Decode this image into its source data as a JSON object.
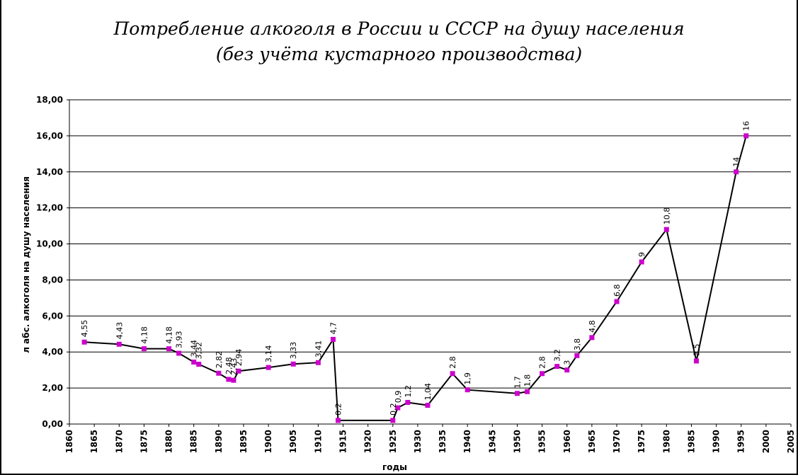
{
  "chart_data": {
    "type": "line",
    "title_line1": "Потребление алкоголя в России и СССР на душу населения",
    "title_line2": "(без учёта кустарного производства)",
    "xlabel": "годы",
    "ylabel": "л абс. алкоголя на душу населения",
    "xlim": [
      1860,
      2005
    ],
    "ylim": [
      0,
      18
    ],
    "x_ticks": [
      "1860",
      "1865",
      "1870",
      "1875",
      "1880",
      "1885",
      "1890",
      "1895",
      "1900",
      "1905",
      "1910",
      "1915",
      "1920",
      "1925",
      "1930",
      "1935",
      "1940",
      "1945",
      "1950",
      "1955",
      "1960",
      "1965",
      "1970",
      "1975",
      "1980",
      "1985",
      "1990",
      "1995",
      "2000",
      "2005"
    ],
    "y_ticks": [
      "0,00",
      "2,00",
      "4,00",
      "6,00",
      "8,00",
      "10,00",
      "12,00",
      "14,00",
      "16,00",
      "18,00"
    ],
    "grid": true,
    "line_color": "#000000",
    "marker_color": "#cc00cc",
    "series": [
      {
        "points": [
          {
            "x": 1863,
            "y": 4.55,
            "label": "4,55"
          },
          {
            "x": 1870,
            "y": 4.43,
            "label": "4,43"
          },
          {
            "x": 1875,
            "y": 4.18,
            "label": "4,18"
          },
          {
            "x": 1880,
            "y": 4.18,
            "label": "4,18"
          },
          {
            "x": 1882,
            "y": 3.93,
            "label": "3,93"
          },
          {
            "x": 1885,
            "y": 3.44,
            "label": "3,44"
          },
          {
            "x": 1886,
            "y": 3.32,
            "label": "3,32"
          },
          {
            "x": 1890,
            "y": 2.82,
            "label": "2,82"
          },
          {
            "x": 1892,
            "y": 2.48,
            "label": "2,48"
          },
          {
            "x": 1893,
            "y": 2.43,
            "label": "2,43"
          },
          {
            "x": 1894,
            "y": 2.94,
            "label": "2,94"
          },
          {
            "x": 1900,
            "y": 3.14,
            "label": "3,14"
          },
          {
            "x": 1905,
            "y": 3.33,
            "label": "3,33"
          },
          {
            "x": 1910,
            "y": 3.41,
            "label": "3,41"
          },
          {
            "x": 1913,
            "y": 4.7,
            "label": "4,7"
          },
          {
            "x": 1914,
            "y": 0.2,
            "label": "0,2"
          },
          {
            "x": 1925,
            "y": 0.2,
            "label": "0,2"
          },
          {
            "x": 1926,
            "y": 0.9,
            "label": "0,9"
          },
          {
            "x": 1928,
            "y": 1.2,
            "label": "1,2"
          },
          {
            "x": 1932,
            "y": 1.04,
            "label": "1,04"
          },
          {
            "x": 1937,
            "y": 2.8,
            "label": "2,8"
          },
          {
            "x": 1940,
            "y": 1.9,
            "label": "1,9"
          },
          {
            "x": 1950,
            "y": 1.7,
            "label": "1,7"
          },
          {
            "x": 1952,
            "y": 1.8,
            "label": "1,8"
          },
          {
            "x": 1955,
            "y": 2.8,
            "label": "2,8"
          },
          {
            "x": 1958,
            "y": 3.2,
            "label": "3,2"
          },
          {
            "x": 1960,
            "y": 3.0,
            "label": "3"
          },
          {
            "x": 1962,
            "y": 3.8,
            "label": "3,8"
          },
          {
            "x": 1965,
            "y": 4.8,
            "label": "4,8"
          },
          {
            "x": 1970,
            "y": 6.8,
            "label": "6,8"
          },
          {
            "x": 1975,
            "y": 9.0,
            "label": "9"
          },
          {
            "x": 1980,
            "y": 10.8,
            "label": "10,8"
          },
          {
            "x": 1986,
            "y": 3.5,
            "label": "3,5"
          },
          {
            "x": 1994,
            "y": 14.0,
            "label": "14"
          },
          {
            "x": 1996,
            "y": 16.0,
            "label": "16"
          }
        ]
      }
    ]
  }
}
